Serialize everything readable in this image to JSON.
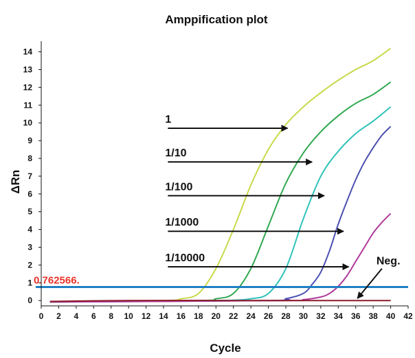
{
  "chart_data": {
    "type": "line",
    "title": "Amppification plot",
    "xlabel": "Cycle",
    "ylabel": "ΔRn",
    "xlim": [
      0,
      42
    ],
    "ylim": [
      -0.3,
      14.6
    ],
    "x_ticks": [
      0,
      2,
      4,
      6,
      8,
      10,
      12,
      14,
      16,
      18,
      20,
      22,
      24,
      26,
      28,
      30,
      32,
      34,
      36,
      38,
      40,
      42
    ],
    "y_ticks": [
      0,
      1,
      2,
      3,
      4,
      5,
      6,
      7,
      8,
      9,
      10,
      11,
      12,
      13,
      14
    ],
    "grid": false,
    "legend": "none",
    "threshold": {
      "label": "0.762566.",
      "value": 0.762566,
      "color": "#1f7fc4"
    },
    "series": [
      {
        "name": "1",
        "color": "#c9d94a",
        "x": [
          1,
          14,
          16,
          18,
          20,
          22,
          24,
          26,
          28,
          30,
          32,
          34,
          36,
          38,
          40
        ],
        "values": [
          -0.08,
          0.0,
          0.1,
          0.4,
          1.8,
          4.0,
          6.5,
          8.5,
          9.9,
          10.9,
          11.7,
          12.4,
          13.0,
          13.5,
          14.2
        ]
      },
      {
        "name": "1/10",
        "color": "#2fa84f",
        "x": [
          1,
          18,
          20,
          22,
          24,
          26,
          28,
          30,
          32,
          34,
          36,
          38,
          40
        ],
        "values": [
          -0.08,
          0.0,
          0.1,
          0.4,
          1.8,
          4.2,
          6.6,
          8.3,
          9.5,
          10.4,
          11.1,
          11.6,
          12.3
        ]
      },
      {
        "name": "1/100",
        "color": "#2cc2b8",
        "x": [
          1,
          20,
          22,
          24,
          26,
          28,
          30,
          32,
          34,
          36,
          38,
          40
        ],
        "values": [
          -0.08,
          0.0,
          0.02,
          0.1,
          0.4,
          1.8,
          4.6,
          7.0,
          8.4,
          9.4,
          10.1,
          10.9
        ]
      },
      {
        "name": "1/1000",
        "color": "#4a4fb0",
        "x": [
          1,
          26,
          28,
          30,
          31,
          32,
          33,
          34,
          35,
          36,
          37,
          38,
          39,
          40
        ],
        "values": [
          -0.08,
          0.0,
          0.1,
          0.4,
          0.9,
          1.6,
          2.8,
          4.3,
          5.6,
          6.8,
          7.8,
          8.6,
          9.3,
          9.8
        ]
      },
      {
        "name": "1/10000",
        "color": "#b03a9a",
        "x": [
          1,
          28,
          30,
          32,
          33,
          34,
          35,
          36,
          37,
          38,
          39,
          40
        ],
        "values": [
          -0.08,
          0.0,
          0.05,
          0.2,
          0.4,
          0.8,
          1.4,
          2.2,
          3.0,
          3.8,
          4.4,
          4.9
        ]
      },
      {
        "name": "Neg.",
        "color": "#8b1a2a",
        "x": [
          1,
          10,
          20,
          30,
          40
        ],
        "values": [
          -0.05,
          0.0,
          0.0,
          0.0,
          0.0
        ]
      }
    ],
    "annotations": [
      {
        "text": "1",
        "arrow_from": [
          14.5,
          9.7
        ],
        "arrow_to": [
          28.2,
          9.7
        ]
      },
      {
        "text": "1/10",
        "arrow_from": [
          14.5,
          7.8
        ],
        "arrow_to": [
          31.0,
          7.8
        ]
      },
      {
        "text": "1/100",
        "arrow_from": [
          14.5,
          5.9
        ],
        "arrow_to": [
          32.4,
          5.9
        ]
      },
      {
        "text": "1/1000",
        "arrow_from": [
          14.5,
          3.9
        ],
        "arrow_to": [
          34.6,
          3.9
        ]
      },
      {
        "text": "1/10000",
        "arrow_from": [
          14.5,
          1.9
        ],
        "arrow_to": [
          35.2,
          1.9
        ]
      },
      {
        "text": "Neg.",
        "arrow_from": [
          39.0,
          1.8
        ],
        "arrow_to": [
          36.2,
          0.12
        ]
      }
    ]
  }
}
